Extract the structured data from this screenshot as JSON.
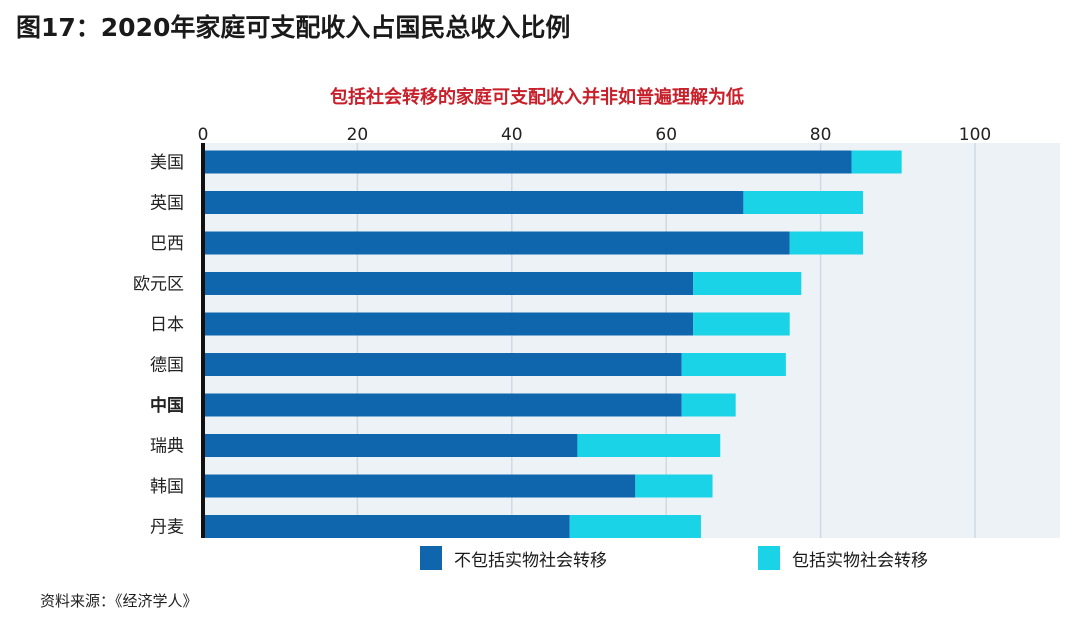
{
  "figure_title": "图17：2020年家庭可支配收入占国民总收入比例",
  "source": "资料来源：《经济学人》",
  "chart_data": {
    "type": "bar",
    "orientation": "horizontal",
    "stacked": true,
    "title": "包括社会转移的家庭可支配收入并非如普遍理解为低",
    "xlabel": "",
    "ylabel": "",
    "xlim": [
      0,
      110
    ],
    "ticks": [
      0,
      20,
      40,
      60,
      80,
      100
    ],
    "grid": true,
    "categories": [
      "美国",
      "英国",
      "巴西",
      "欧元区",
      "日本",
      "德国",
      "中国",
      "瑞典",
      "韩国",
      "丹麦"
    ],
    "highlight_category": "中国",
    "series": [
      {
        "name": "不包括实物社会转移",
        "color": "#0f66ad",
        "values": [
          84,
          70,
          76,
          63.5,
          63.5,
          62,
          62,
          48.5,
          56,
          47.5
        ]
      },
      {
        "name": "包括实物社会转移",
        "color": "#1bd3e6",
        "values": [
          6.5,
          15.5,
          9.5,
          14,
          12.5,
          13.5,
          7,
          18.5,
          10,
          17
        ]
      }
    ],
    "legend_position": "bottom"
  }
}
